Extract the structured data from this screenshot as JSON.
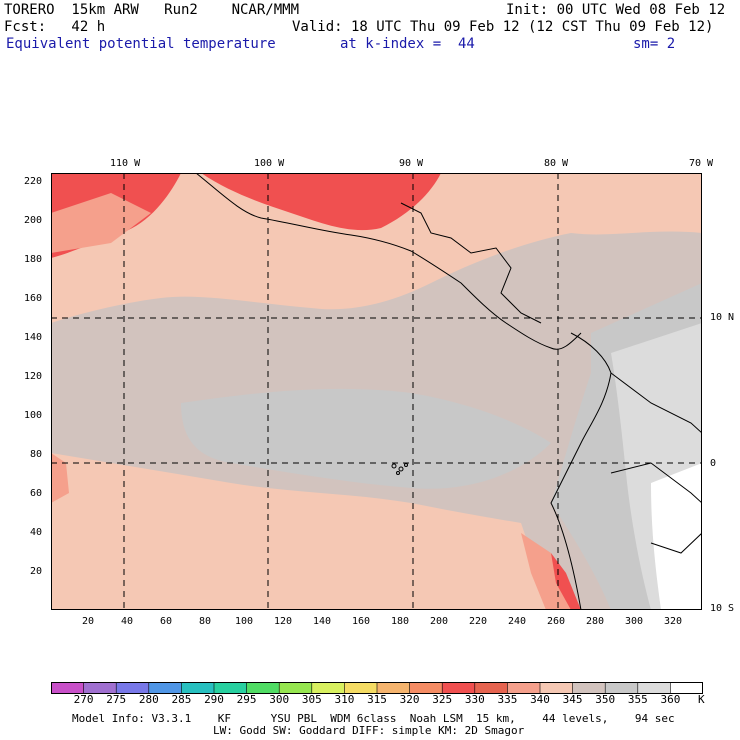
{
  "header": {
    "model": "TORERO  15km ARW   Run2    NCAR/MMM",
    "init": "Init: 00 UTC Wed 08 Feb 12",
    "fcst": "Fcst:   42 h",
    "valid": "Valid: 18 UTC Thu 09 Feb 12 (12 CST Thu 09 Feb 12)",
    "field": "Equivalent potential temperature",
    "level": "at k-index =  44",
    "smooth": "sm= 2"
  },
  "map": {
    "top_lon_labels": [
      "110 W",
      "100 W",
      "90 W",
      "80 W",
      "70 W"
    ],
    "right_lat_labels": [
      "10 N",
      "0",
      "10 S"
    ],
    "left_grid_labels": [
      "220",
      "200",
      "180",
      "160",
      "140",
      "120",
      "100",
      "80",
      "60",
      "40",
      "20"
    ],
    "bottom_grid_labels": [
      "20",
      "40",
      "60",
      "80",
      "100",
      "120",
      "140",
      "160",
      "180",
      "200",
      "220",
      "240",
      "260",
      "280",
      "300",
      "320"
    ]
  },
  "colorbar": {
    "labels": [
      "270",
      "275",
      "280",
      "285",
      "290",
      "295",
      "300",
      "305",
      "310",
      "315",
      "320",
      "325",
      "330",
      "335",
      "340",
      "345",
      "350",
      "355",
      "360"
    ],
    "unit": "K",
    "colors": [
      "#c850c8",
      "#a070d0",
      "#7878e8",
      "#5096e6",
      "#28c0c0",
      "#28d0a0",
      "#50dc64",
      "#96e650",
      "#d8f060",
      "#f5dc64",
      "#f5b46e",
      "#f58c64",
      "#f05050",
      "#e66450",
      "#f5a08c",
      "#f5c8b4",
      "#d2c3be",
      "#c8c8c8",
      "#dcdcdc",
      "#ffffff"
    ]
  },
  "footer": {
    "line1": "Model Info: V3.3.1    KF      YSU PBL  WDM 6class  Noah LSM  15 km,    44 levels,    94 sec",
    "line2": "LW: Godd SW: Goddard DIFF: simple KM: 2D Smagor"
  }
}
